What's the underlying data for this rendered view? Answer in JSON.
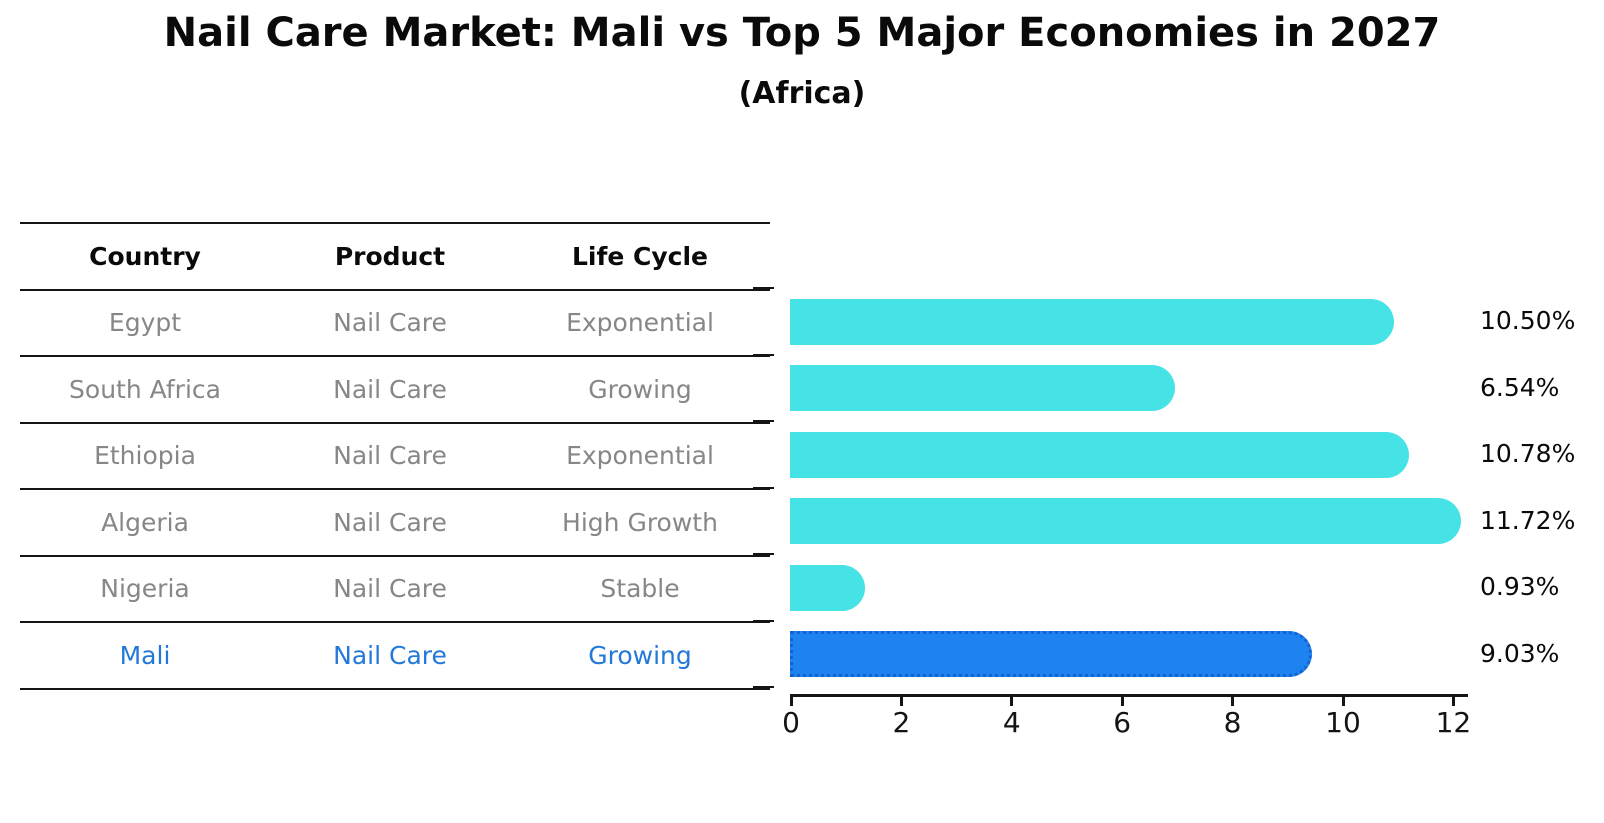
{
  "title": "Nail Care Market: Mali vs Top 5 Major Economies in 2027",
  "subtitle": "(Africa)",
  "table": {
    "columns": [
      "Country",
      "Product",
      "Life Cycle"
    ]
  },
  "chart_data": {
    "type": "bar",
    "orientation": "horizontal",
    "title": "Nail Care Market: Mali vs Top 5 Major Economies in 2027",
    "subtitle": "(Africa)",
    "categories": [
      "Egypt",
      "South Africa",
      "Ethiopia",
      "Algeria",
      "Nigeria",
      "Mali"
    ],
    "values": [
      10.5,
      6.54,
      10.78,
      11.72,
      0.93,
      9.03
    ],
    "rows": [
      {
        "country": "Egypt",
        "product": "Nail Care",
        "life_cycle": "Exponential",
        "value": 10.5,
        "label": "10.50%",
        "highlighted": false
      },
      {
        "country": "South Africa",
        "product": "Nail Care",
        "life_cycle": "Growing",
        "value": 6.54,
        "label": "6.54%",
        "highlighted": false
      },
      {
        "country": "Ethiopia",
        "product": "Nail Care",
        "life_cycle": "Exponential",
        "value": 10.78,
        "label": "10.78%",
        "highlighted": false
      },
      {
        "country": "Algeria",
        "product": "Nail Care",
        "life_cycle": "High Growth",
        "value": 11.72,
        "label": "11.72%",
        "highlighted": false
      },
      {
        "country": "Nigeria",
        "product": "Nail Care",
        "life_cycle": "Stable",
        "value": 0.93,
        "label": "0.93%",
        "highlighted": false
      },
      {
        "country": "Mali",
        "product": "Nail Care",
        "life_cycle": "Growing",
        "value": 9.03,
        "label": "9.03%",
        "highlighted": true
      }
    ],
    "x_ticks": [
      0,
      2,
      4,
      6,
      8,
      10,
      12
    ],
    "xlim": [
      0,
      12.3
    ],
    "grid": false,
    "legend": null,
    "colors": {
      "bar": "#46e3e6",
      "highlight_bar": "#1e82f0",
      "highlight_border": "#1263cf",
      "highlight_text": "#2379d9",
      "row_text": "#878787",
      "header_text": "#0a0a0a",
      "axis": "#141414"
    },
    "highlight_category": "Mali"
  }
}
